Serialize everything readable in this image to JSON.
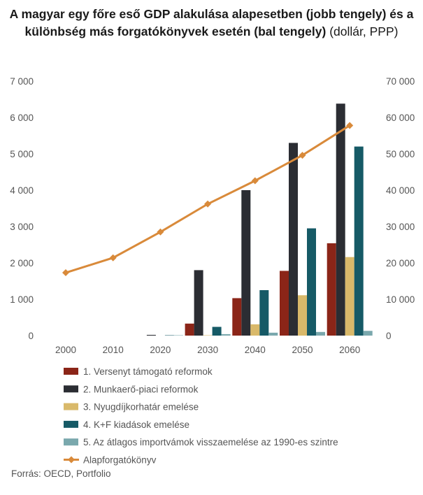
{
  "chart_data": {
    "type": "bar",
    "title_bold": "A magyar egy főre eső GDP alakulása alapesetben (jobb tengely) és a különbség más forgatókönyvek esetén (bal tengely)",
    "title_normal": "(dollár, PPP)",
    "categories": [
      "2000",
      "2010",
      "2020",
      "2030",
      "2040",
      "2050",
      "2060"
    ],
    "left_axis": {
      "ylim": [
        0,
        7000
      ],
      "ticks": [
        "0",
        "1 000",
        "2 000",
        "3 000",
        "4 000",
        "5 000",
        "6 000",
        "7 000"
      ]
    },
    "right_axis": {
      "ylim": [
        0,
        70000
      ],
      "ticks": [
        "0",
        "10 000",
        "20 000",
        "30 000",
        "40 000",
        "50 000",
        "60 000",
        "70 000"
      ]
    },
    "series": [
      {
        "name": "1. Versenyt támogató reformok",
        "axis": "left",
        "kind": "bar",
        "color": "#8b2518",
        "values": [
          0,
          0,
          0,
          330,
          1030,
          1780,
          2540
        ]
      },
      {
        "name": "2. Munkaerő-piaci reformok",
        "axis": "left",
        "kind": "bar",
        "color": "#2b2d33",
        "values": [
          0,
          0,
          20,
          1800,
          4000,
          5300,
          6380
        ]
      },
      {
        "name": "3. Nyugdíjkorhatár emelése",
        "axis": "left",
        "kind": "bar",
        "color": "#d9b96a",
        "values": [
          0,
          0,
          0,
          10,
          310,
          1110,
          2160
        ]
      },
      {
        "name": "4. K+F kiadások emelése",
        "axis": "left",
        "kind": "bar",
        "color": "#165a66",
        "values": [
          0,
          0,
          10,
          240,
          1250,
          2950,
          5200
        ]
      },
      {
        "name": "5. Az átlagos importvámok visszaemelése az 1990-es szintre",
        "axis": "left",
        "kind": "bar",
        "color": "#7aa8ad",
        "values": [
          0,
          0,
          10,
          40,
          80,
          100,
          130
        ]
      },
      {
        "name": "Alapforgatókönyv",
        "axis": "right",
        "kind": "line",
        "color": "#d98a3a",
        "values": [
          17300,
          21400,
          28500,
          36200,
          42600,
          49600,
          57800
        ]
      }
    ],
    "source": "Forrás: OECD, Portfolio"
  }
}
